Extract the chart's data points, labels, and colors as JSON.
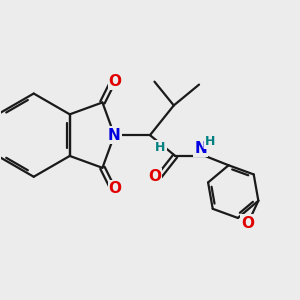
{
  "background_color": "#ececec",
  "bond_color": "#1a1a1a",
  "bond_width": 1.6,
  "figsize": [
    3.0,
    3.0
  ],
  "dpi": 100,
  "colors": {
    "N": "#0000e0",
    "O": "#e00000",
    "H": "#008080",
    "C": "#1a1a1a"
  }
}
